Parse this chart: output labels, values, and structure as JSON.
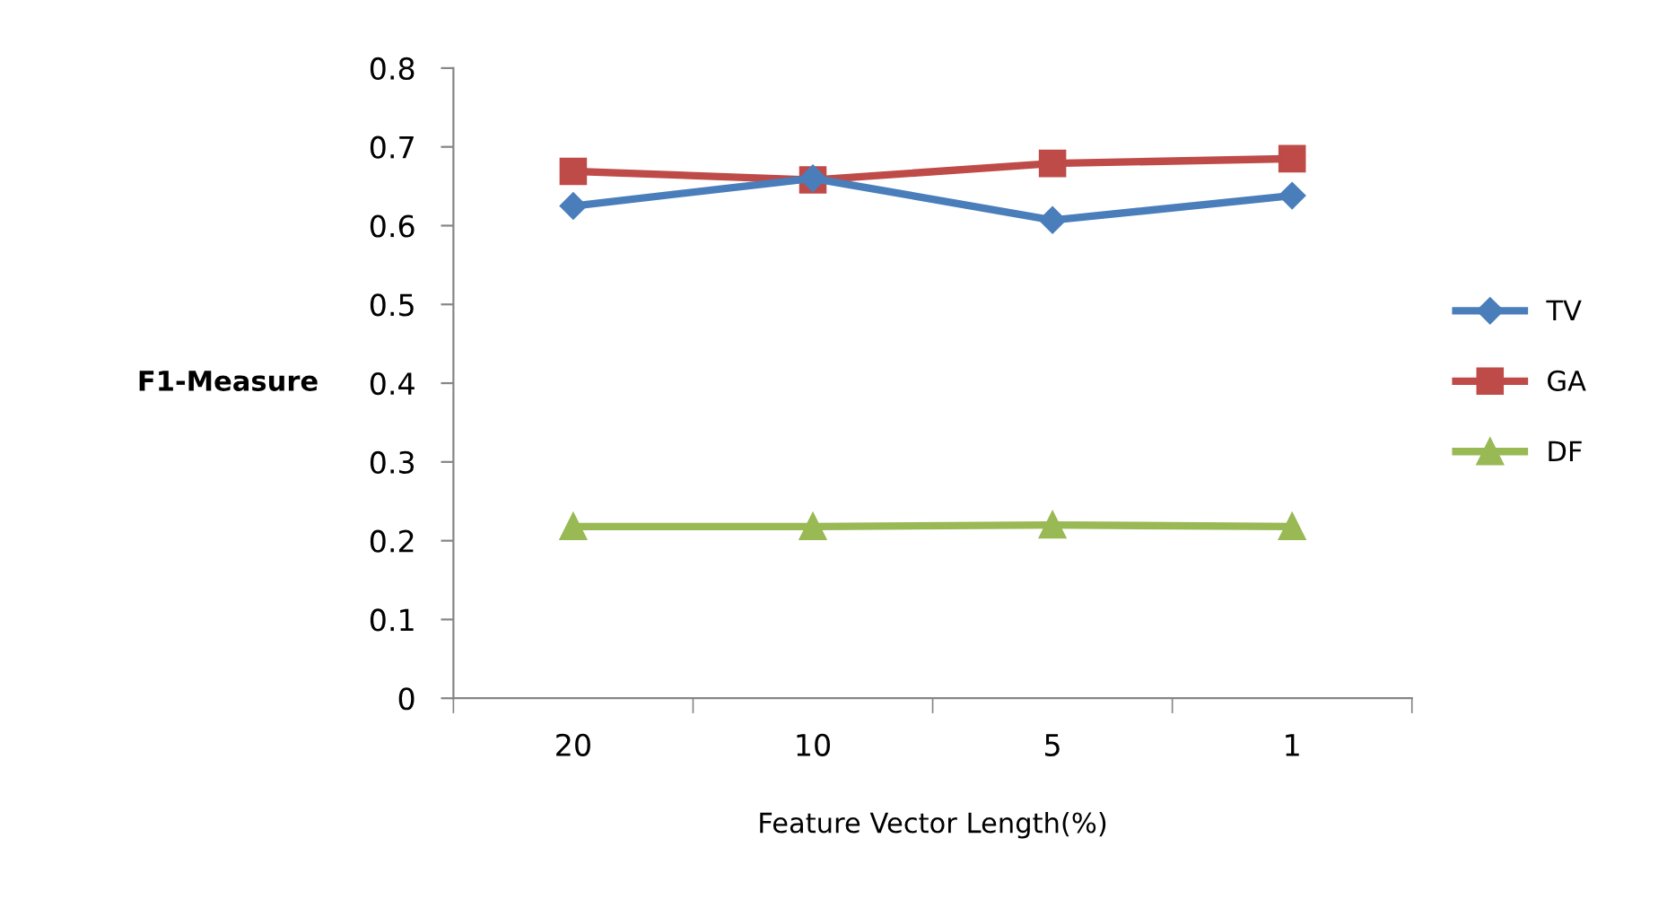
{
  "chart_data": {
    "type": "line",
    "xlabel": "Feature Vector Length(%)",
    "ylabel": "F1-Measure",
    "categories": [
      "20",
      "10",
      "5",
      "1"
    ],
    "series": [
      {
        "name": "TV",
        "color": "#4a7ebb",
        "marker": "diamond",
        "values": [
          0.625,
          0.66,
          0.607,
          0.638
        ]
      },
      {
        "name": "GA",
        "color": "#be4b48",
        "marker": "square",
        "values": [
          0.669,
          0.658,
          0.679,
          0.685
        ]
      },
      {
        "name": "DF",
        "color": "#98b954",
        "marker": "triangle",
        "values": [
          0.218,
          0.218,
          0.22,
          0.218
        ]
      }
    ],
    "ylim": [
      0,
      0.8
    ],
    "yticks": [
      0,
      0.1,
      0.2,
      0.3,
      0.4,
      0.5,
      0.6,
      0.7,
      0.8
    ],
    "grid": false,
    "legend": "right"
  }
}
